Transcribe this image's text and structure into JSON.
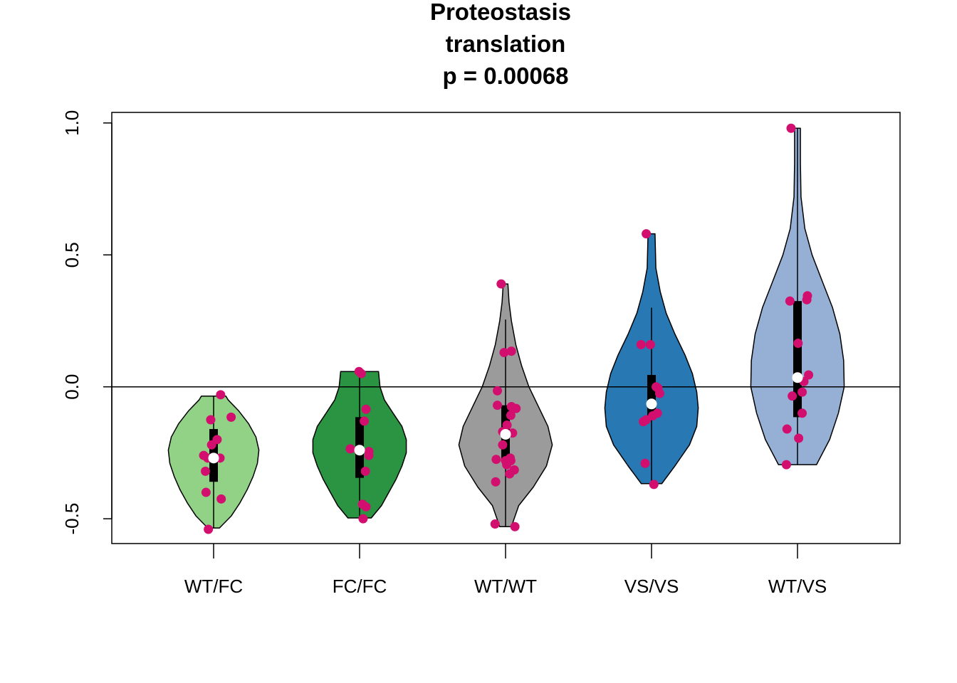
{
  "chart_data": {
    "type": "violin",
    "title_lines": [
      "Proteostasis",
      "translation",
      "p = 0.00068"
    ],
    "xlabel": "",
    "ylabel": "",
    "ylim": [
      -0.594,
      1.04
    ],
    "yticks": [
      -0.5,
      0.0,
      0.5,
      1.0
    ],
    "ytick_labels": [
      "-0.5",
      "0.0",
      "0.5",
      "1.0"
    ],
    "reference_line_y": 0,
    "point_color": "#D20F6E",
    "median_marker_color": "#FFFFFF",
    "categories": [
      "WT/FC",
      "FC/FC",
      "WT/WT",
      "VS/VS",
      "WT/VS"
    ],
    "groups": [
      {
        "label": "WT/FC",
        "fill": "#91D286",
        "min": -0.535,
        "q1": -0.36,
        "median": -0.27,
        "q3": -0.16,
        "max": -0.035,
        "whisker_low": -0.535,
        "whisker_high": -0.035,
        "density": [
          [
            -0.535,
            0.02
          ],
          [
            -0.49,
            0.06
          ],
          [
            -0.44,
            0.09
          ],
          [
            -0.39,
            0.115
          ],
          [
            -0.34,
            0.135
          ],
          [
            -0.29,
            0.15
          ],
          [
            -0.24,
            0.155
          ],
          [
            -0.19,
            0.145
          ],
          [
            -0.14,
            0.12
          ],
          [
            -0.09,
            0.085
          ],
          [
            -0.05,
            0.05
          ],
          [
            -0.035,
            0.042
          ]
        ],
        "points": [
          [
            -0.018,
            -0.54
          ],
          [
            -0.026,
            -0.4
          ],
          [
            -0.02,
            -0.27
          ],
          [
            -0.028,
            -0.32
          ],
          [
            -0.034,
            -0.26
          ],
          [
            -0.007,
            -0.22
          ],
          [
            0.012,
            -0.2
          ],
          [
            -0.01,
            -0.125
          ],
          [
            0.06,
            -0.115
          ],
          [
            0.022,
            -0.27
          ],
          [
            0.026,
            -0.425
          ],
          [
            0.024,
            -0.03
          ]
        ]
      },
      {
        "label": "FC/FC",
        "fill": "#2A9442",
        "min": -0.497,
        "q1": -0.345,
        "median": -0.24,
        "q3": -0.115,
        "max": 0.058,
        "whisker_low": -0.497,
        "whisker_high": 0.058,
        "density": [
          [
            -0.497,
            0.04
          ],
          [
            -0.45,
            0.075
          ],
          [
            -0.4,
            0.1
          ],
          [
            -0.35,
            0.125
          ],
          [
            -0.3,
            0.145
          ],
          [
            -0.25,
            0.16
          ],
          [
            -0.2,
            0.16
          ],
          [
            -0.15,
            0.145
          ],
          [
            -0.1,
            0.115
          ],
          [
            -0.05,
            0.085
          ],
          [
            0.0,
            0.07
          ],
          [
            0.058,
            0.065
          ]
        ],
        "points": [
          [
            -0.032,
            -0.235
          ],
          [
            -0.005,
            -0.24
          ],
          [
            0.032,
            -0.245
          ],
          [
            0.032,
            -0.26
          ],
          [
            0.02,
            -0.32
          ],
          [
            0.022,
            -0.455
          ],
          [
            0.01,
            -0.445
          ],
          [
            0.012,
            -0.5
          ],
          [
            0.022,
            -0.085
          ],
          [
            0.016,
            -0.13
          ],
          [
            -0.002,
            0.058
          ],
          [
            0.006,
            0.05
          ]
        ]
      },
      {
        "label": "WT/WT",
        "fill": "#9B9B9B",
        "min": -0.53,
        "q1": -0.28,
        "median": -0.18,
        "q3": -0.07,
        "max": 0.39,
        "whisker_low": -0.53,
        "whisker_high": 0.255,
        "density": [
          [
            -0.53,
            0.02
          ],
          [
            -0.45,
            0.045
          ],
          [
            -0.38,
            0.095
          ],
          [
            -0.3,
            0.14
          ],
          [
            -0.22,
            0.16
          ],
          [
            -0.15,
            0.145
          ],
          [
            -0.08,
            0.115
          ],
          [
            0.0,
            0.08
          ],
          [
            0.08,
            0.055
          ],
          [
            0.16,
            0.035
          ],
          [
            0.25,
            0.02
          ],
          [
            0.32,
            0.012
          ],
          [
            0.39,
            0.008
          ]
        ],
        "points": [
          [
            -0.015,
            0.39
          ],
          [
            -0.005,
            0.13
          ],
          [
            0.02,
            0.135
          ],
          [
            -0.028,
            -0.015
          ],
          [
            -0.028,
            -0.07
          ],
          [
            0.02,
            -0.075
          ],
          [
            0.036,
            -0.082
          ],
          [
            0.018,
            -0.108
          ],
          [
            0.005,
            -0.145
          ],
          [
            -0.01,
            -0.17
          ],
          [
            0.024,
            -0.175
          ],
          [
            -0.01,
            -0.22
          ],
          [
            0.016,
            -0.27
          ],
          [
            -0.032,
            -0.275
          ],
          [
            0.0,
            -0.28
          ],
          [
            0.018,
            -0.28
          ],
          [
            0.004,
            -0.295
          ],
          [
            0.03,
            -0.315
          ],
          [
            0.014,
            -0.33
          ],
          [
            -0.034,
            -0.36
          ],
          [
            -0.036,
            -0.52
          ],
          [
            0.032,
            -0.53
          ]
        ]
      },
      {
        "label": "VS/VS",
        "fill": "#2878B4",
        "min": -0.367,
        "q1": -0.115,
        "median": -0.065,
        "q3": 0.045,
        "max": 0.58,
        "whisker_low": -0.367,
        "whisker_high": 0.3,
        "density": [
          [
            -0.367,
            0.035
          ],
          [
            -0.3,
            0.08
          ],
          [
            -0.22,
            0.13
          ],
          [
            -0.15,
            0.155
          ],
          [
            -0.08,
            0.16
          ],
          [
            -0.02,
            0.155
          ],
          [
            0.05,
            0.14
          ],
          [
            0.12,
            0.115
          ],
          [
            0.2,
            0.08
          ],
          [
            0.28,
            0.05
          ],
          [
            0.36,
            0.03
          ],
          [
            0.45,
            0.015
          ],
          [
            0.58,
            0.012
          ]
        ],
        "points": [
          [
            -0.036,
            0.16
          ],
          [
            -0.004,
            0.16
          ],
          [
            -0.018,
            0.58
          ],
          [
            0.016,
            0.0
          ],
          [
            0.022,
            -0.005
          ],
          [
            0.028,
            -0.025
          ],
          [
            0.02,
            -0.1
          ],
          [
            0.004,
            -0.11
          ],
          [
            -0.018,
            -0.125
          ],
          [
            -0.028,
            -0.132
          ],
          [
            -0.022,
            -0.29
          ],
          [
            0.008,
            -0.37
          ]
        ]
      },
      {
        "label": "WT/VS",
        "fill": "#96B0D5",
        "min": -0.295,
        "q1": -0.115,
        "median": 0.035,
        "q3": 0.325,
        "max": 0.98,
        "whisker_low": -0.295,
        "whisker_high": 0.98,
        "density": [
          [
            -0.295,
            0.065
          ],
          [
            -0.2,
            0.11
          ],
          [
            -0.1,
            0.14
          ],
          [
            0.0,
            0.16
          ],
          [
            0.1,
            0.158
          ],
          [
            0.2,
            0.145
          ],
          [
            0.3,
            0.12
          ],
          [
            0.4,
            0.085
          ],
          [
            0.5,
            0.05
          ],
          [
            0.6,
            0.025
          ],
          [
            0.72,
            0.012
          ],
          [
            0.85,
            0.01
          ],
          [
            0.98,
            0.01
          ]
        ],
        "points": [
          [
            -0.022,
            0.98
          ],
          [
            -0.026,
            0.325
          ],
          [
            0.034,
            0.345
          ],
          [
            0.032,
            0.33
          ],
          [
            0.002,
            0.165
          ],
          [
            0.038,
            0.045
          ],
          [
            0.022,
            0.02
          ],
          [
            0.016,
            -0.02
          ],
          [
            -0.018,
            -0.035
          ],
          [
            0.016,
            -0.1
          ],
          [
            -0.036,
            -0.16
          ],
          [
            0.004,
            -0.195
          ],
          [
            -0.038,
            -0.295
          ]
        ]
      }
    ]
  }
}
